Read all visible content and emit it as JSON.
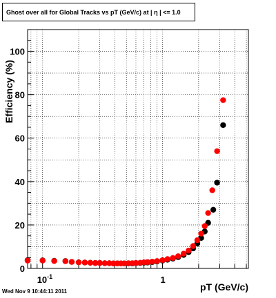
{
  "title": "Ghost over all for Global Tracks vs pT (GeV/c) at |  η | <= 1.0",
  "footer": "Wed Nov  9 10:44:11 2011",
  "chart_data": {
    "type": "scatter",
    "title": "Ghost over all for Global Tracks vs pT (GeV/c) at |  η | <= 1.0",
    "xlabel": "pT (GeV/c)",
    "ylabel": "Efficiency (%)",
    "xscale": "log",
    "xlim": [
      0.075,
      5.2
    ],
    "ylim": [
      0,
      110
    ],
    "grid": true,
    "x_tick_labels": [
      {
        "value": 0.1,
        "base": "10",
        "exp": "-1"
      },
      {
        "value": 1,
        "base": "1",
        "exp": ""
      }
    ],
    "y_ticks": [
      0,
      20,
      40,
      60,
      80,
      100
    ],
    "series": [
      {
        "color": "#000000",
        "points": [
          [
            0.075,
            3.8
          ],
          [
            0.1,
            3.7
          ],
          [
            0.125,
            3.5
          ],
          [
            0.155,
            3.4
          ],
          [
            0.175,
            3.0
          ],
          [
            0.2,
            2.8
          ],
          [
            0.225,
            2.7
          ],
          [
            0.25,
            2.6
          ],
          [
            0.275,
            2.5
          ],
          [
            0.3,
            2.5
          ],
          [
            0.33,
            2.4
          ],
          [
            0.36,
            2.4
          ],
          [
            0.39,
            2.3
          ],
          [
            0.42,
            2.3
          ],
          [
            0.45,
            2.3
          ],
          [
            0.48,
            2.3
          ],
          [
            0.52,
            2.3
          ],
          [
            0.56,
            2.3
          ],
          [
            0.6,
            2.4
          ],
          [
            0.65,
            2.5
          ],
          [
            0.7,
            2.6
          ],
          [
            0.75,
            2.7
          ],
          [
            0.82,
            2.9
          ],
          [
            0.9,
            3.2
          ],
          [
            1.0,
            3.6
          ],
          [
            1.1,
            4.0
          ],
          [
            1.22,
            4.5
          ],
          [
            1.35,
            5.2
          ],
          [
            1.5,
            6.2
          ],
          [
            1.65,
            7.5
          ],
          [
            1.8,
            9.2
          ],
          [
            1.95,
            11.5
          ],
          [
            2.1,
            14.0
          ],
          [
            2.25,
            17.0
          ],
          [
            2.4,
            21.0
          ],
          [
            2.65,
            27.0
          ],
          [
            2.85,
            39.5
          ],
          [
            3.2,
            66.0
          ]
        ]
      },
      {
        "color": "#ff0000",
        "points": [
          [
            0.075,
            3.6
          ],
          [
            0.1,
            3.6
          ],
          [
            0.125,
            3.4
          ],
          [
            0.155,
            3.3
          ],
          [
            0.175,
            3.0
          ],
          [
            0.2,
            2.8
          ],
          [
            0.225,
            2.7
          ],
          [
            0.25,
            2.6
          ],
          [
            0.275,
            2.5
          ],
          [
            0.3,
            2.5
          ],
          [
            0.33,
            2.4
          ],
          [
            0.36,
            2.4
          ],
          [
            0.39,
            2.3
          ],
          [
            0.42,
            2.3
          ],
          [
            0.45,
            2.3
          ],
          [
            0.48,
            2.3
          ],
          [
            0.52,
            2.4
          ],
          [
            0.56,
            2.4
          ],
          [
            0.6,
            2.5
          ],
          [
            0.65,
            2.6
          ],
          [
            0.7,
            2.8
          ],
          [
            0.75,
            2.9
          ],
          [
            0.82,
            3.1
          ],
          [
            0.9,
            3.4
          ],
          [
            1.0,
            3.8
          ],
          [
            1.1,
            4.3
          ],
          [
            1.22,
            4.8
          ],
          [
            1.35,
            5.6
          ],
          [
            1.5,
            6.8
          ],
          [
            1.65,
            8.2
          ],
          [
            1.8,
            10.3
          ],
          [
            1.95,
            13.0
          ],
          [
            2.1,
            16.0
          ],
          [
            2.25,
            19.5
          ],
          [
            2.4,
            25.5
          ],
          [
            2.6,
            36.0
          ],
          [
            2.85,
            54.0
          ],
          [
            3.2,
            77.5
          ]
        ]
      }
    ]
  }
}
